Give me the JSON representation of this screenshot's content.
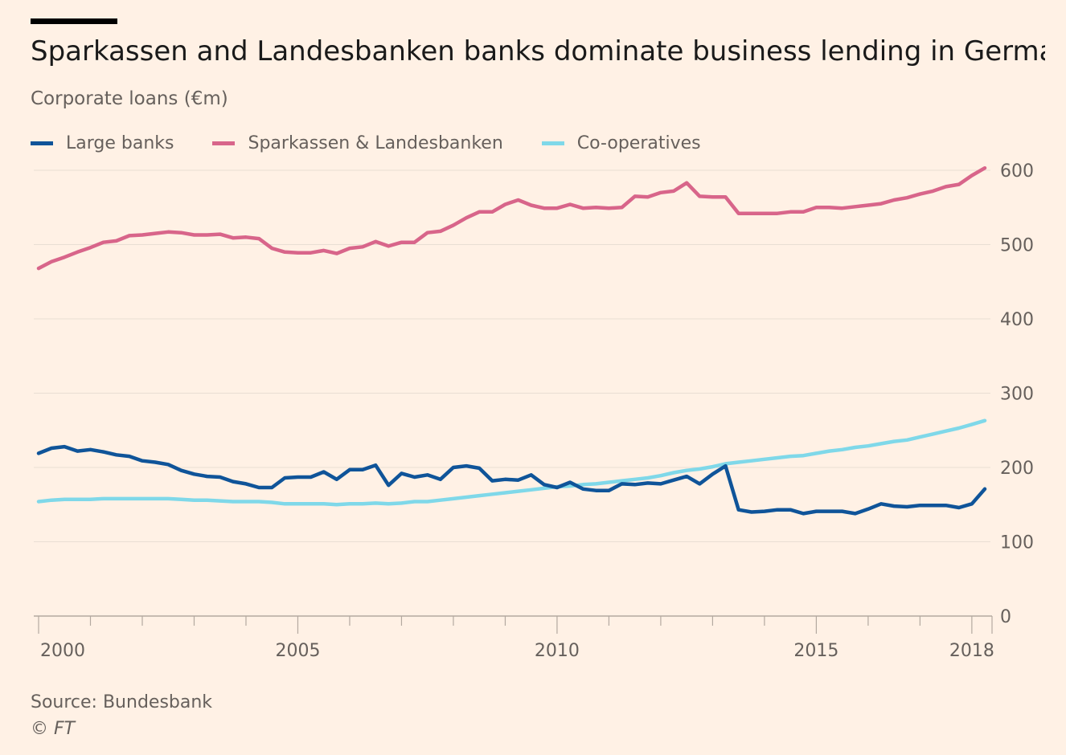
{
  "title": "Sparkassen and Landesbanken banks dominate business lending in Germany",
  "subtitle": "Corporate loans (€m)",
  "source": "Source: Bundesbank",
  "copyright": "© FT",
  "colors": {
    "background": "#fff1e5",
    "large_banks": "#0f5499",
    "sparkassen": "#d8658a",
    "coops": "#7fd8e9",
    "grid": "#e9ded3"
  },
  "chart_data": {
    "type": "line",
    "title": "Sparkassen and Landesbanken banks dominate business lending in Germany",
    "ylabel": "Corporate loans (€m)",
    "xlabel": "",
    "ylim": [
      0,
      600
    ],
    "y_ticks": [
      "600",
      "500",
      "400",
      "300",
      "200",
      "100",
      "0"
    ],
    "y_tick_values": [
      600,
      500,
      400,
      300,
      200,
      100,
      0
    ],
    "x_tick_labels": [
      "2000",
      "2005",
      "2010",
      "2015",
      "2018"
    ],
    "x_tick_values": [
      2000,
      2005,
      2010,
      2015,
      2018
    ],
    "xlim": [
      2000,
      2018.5
    ],
    "legend_position": "top-left",
    "series": [
      {
        "name": "Large banks",
        "color": "#0f5499",
        "x": [
          2000,
          2000.25,
          2000.5,
          2000.75,
          2001,
          2001.25,
          2001.5,
          2001.75,
          2002,
          2002.25,
          2002.5,
          2002.75,
          2003,
          2003.25,
          2003.5,
          2003.75,
          2004,
          2004.25,
          2004.5,
          2004.75,
          2005,
          2005.25,
          2005.5,
          2005.75,
          2006,
          2006.25,
          2006.5,
          2006.75,
          2007,
          2007.25,
          2007.5,
          2007.75,
          2008,
          2008.25,
          2008.5,
          2008.75,
          2009,
          2009.25,
          2009.5,
          2009.75,
          2010,
          2010.25,
          2010.5,
          2010.75,
          2011,
          2011.25,
          2011.5,
          2011.75,
          2012,
          2012.25,
          2012.5,
          2012.75,
          2013,
          2013.25,
          2013.5,
          2013.75,
          2014,
          2014.25,
          2014.5,
          2014.75,
          2015,
          2015.25,
          2015.5,
          2015.75,
          2016,
          2016.25,
          2016.5,
          2016.75,
          2017,
          2017.25,
          2017.5,
          2017.75,
          2018,
          2018.25
        ],
        "values": [
          219,
          226,
          228,
          222,
          224,
          221,
          217,
          215,
          209,
          207,
          204,
          196,
          191,
          188,
          187,
          181,
          178,
          173,
          173,
          186,
          187,
          187,
          194,
          184,
          197,
          197,
          203,
          176,
          192,
          187,
          190,
          184,
          200,
          202,
          199,
          182,
          184,
          183,
          190,
          177,
          173,
          180,
          171,
          169,
          169,
          178,
          177,
          179,
          178,
          183,
          188,
          178,
          191,
          202,
          143,
          140,
          141,
          143,
          143,
          138,
          141,
          141,
          141,
          138,
          144,
          151,
          148,
          147,
          149,
          149,
          149,
          146,
          151,
          171
        ]
      },
      {
        "name": "Sparkassen & Landesbanken",
        "color": "#d8658a",
        "x": [
          2000,
          2000.25,
          2000.5,
          2000.75,
          2001,
          2001.25,
          2001.5,
          2001.75,
          2002,
          2002.25,
          2002.5,
          2002.75,
          2003,
          2003.25,
          2003.5,
          2003.75,
          2004,
          2004.25,
          2004.5,
          2004.75,
          2005,
          2005.25,
          2005.5,
          2005.75,
          2006,
          2006.25,
          2006.5,
          2006.75,
          2007,
          2007.25,
          2007.5,
          2007.75,
          2008,
          2008.25,
          2008.5,
          2008.75,
          2009,
          2009.25,
          2009.5,
          2009.75,
          2010,
          2010.25,
          2010.5,
          2010.75,
          2011,
          2011.25,
          2011.5,
          2011.75,
          2012,
          2012.25,
          2012.5,
          2012.75,
          2013,
          2013.25,
          2013.5,
          2013.75,
          2014,
          2014.25,
          2014.5,
          2014.75,
          2015,
          2015.25,
          2015.5,
          2015.75,
          2016,
          2016.25,
          2016.5,
          2016.75,
          2017,
          2017.25,
          2017.5,
          2017.75,
          2018,
          2018.25
        ],
        "values": [
          468,
          477,
          483,
          490,
          496,
          503,
          505,
          512,
          513,
          515,
          517,
          516,
          513,
          513,
          514,
          509,
          510,
          508,
          495,
          490,
          489,
          489,
          492,
          488,
          495,
          497,
          504,
          498,
          503,
          503,
          516,
          518,
          526,
          536,
          544,
          544,
          554,
          560,
          553,
          549,
          549,
          554,
          549,
          550,
          549,
          550,
          565,
          564,
          570,
          572,
          583,
          565,
          564,
          564,
          542,
          542,
          542,
          542,
          544,
          544,
          550,
          550,
          549,
          551,
          553,
          555,
          560,
          563,
          568,
          572,
          578,
          581,
          593,
          603
        ]
      },
      {
        "name": "Co-operatives",
        "color": "#7fd8e9",
        "x": [
          2000,
          2000.25,
          2000.5,
          2000.75,
          2001,
          2001.25,
          2001.5,
          2001.75,
          2002,
          2002.25,
          2002.5,
          2002.75,
          2003,
          2003.25,
          2003.5,
          2003.75,
          2004,
          2004.25,
          2004.5,
          2004.75,
          2005,
          2005.25,
          2005.5,
          2005.75,
          2006,
          2006.25,
          2006.5,
          2006.75,
          2007,
          2007.25,
          2007.5,
          2007.75,
          2008,
          2008.25,
          2008.5,
          2008.75,
          2009,
          2009.25,
          2009.5,
          2009.75,
          2010,
          2010.25,
          2010.5,
          2010.75,
          2011,
          2011.25,
          2011.5,
          2011.75,
          2012,
          2012.25,
          2012.5,
          2012.75,
          2013,
          2013.25,
          2013.5,
          2013.75,
          2014,
          2014.25,
          2014.5,
          2014.75,
          2015,
          2015.25,
          2015.5,
          2015.75,
          2016,
          2016.25,
          2016.5,
          2016.75,
          2017,
          2017.25,
          2017.5,
          2017.75,
          2018,
          2018.25
        ],
        "values": [
          154,
          156,
          157,
          157,
          157,
          158,
          158,
          158,
          158,
          158,
          158,
          157,
          156,
          156,
          155,
          154,
          154,
          154,
          153,
          151,
          151,
          151,
          151,
          150,
          151,
          151,
          152,
          151,
          152,
          154,
          154,
          156,
          158,
          160,
          162,
          164,
          166,
          168,
          170,
          172,
          174,
          175,
          177,
          178,
          180,
          182,
          184,
          186,
          189,
          193,
          196,
          198,
          201,
          205,
          207,
          209,
          211,
          213,
          215,
          216,
          219,
          222,
          224,
          227,
          229,
          232,
          235,
          237,
          241,
          245,
          249,
          253,
          258,
          263
        ]
      }
    ]
  }
}
